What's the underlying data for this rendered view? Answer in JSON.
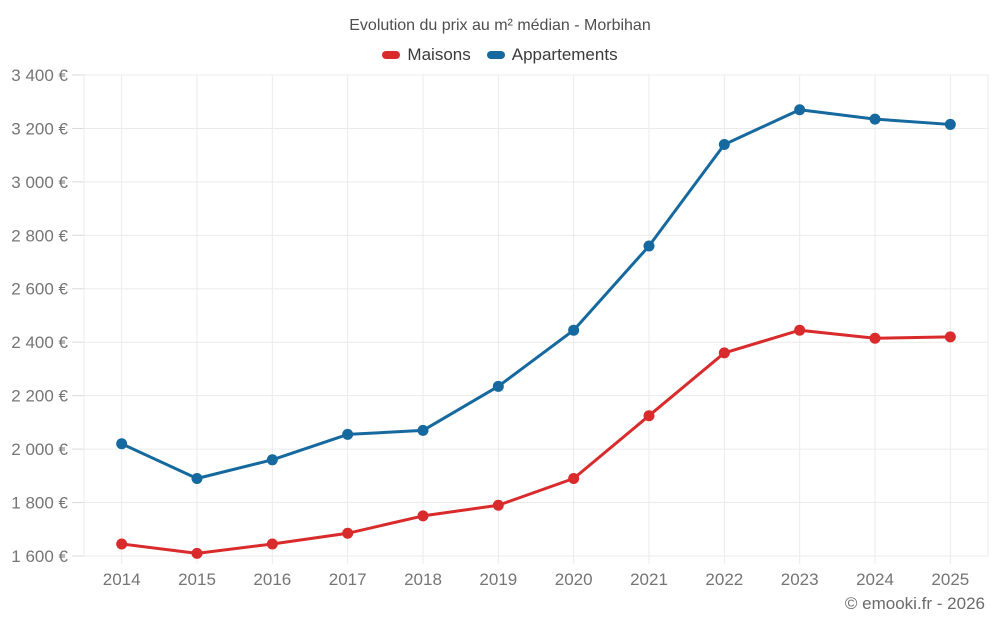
{
  "title": "Evolution du prix au m² médian - Morbihan",
  "footer": "© emooki.fr - 2026",
  "legend": {
    "items": [
      {
        "label": "Maisons",
        "color": "#d92b2b"
      },
      {
        "label": "Appartements",
        "color": "#15699e"
      }
    ]
  },
  "colors": {
    "maisons": "#d92b2b",
    "appartements": "#15699e",
    "gridline": "#ebebeb",
    "tick": "#d9d9d9",
    "axis_label": "#757575",
    "title_text": "#4e4e4e",
    "footer_text": "#6b6b6b"
  },
  "chart_data": {
    "type": "line",
    "title": "Evolution du prix au m² médian - Morbihan",
    "categories": [
      "2014",
      "2015",
      "2016",
      "2017",
      "2018",
      "2019",
      "2020",
      "2021",
      "2022",
      "2023",
      "2024",
      "2025"
    ],
    "series": [
      {
        "name": "Maisons",
        "color": "#d92b2b",
        "values": [
          1645,
          1610,
          1645,
          1685,
          1750,
          1790,
          1890,
          2125,
          2360,
          2445,
          2415,
          2420
        ]
      },
      {
        "name": "Appartements",
        "color": "#15699e",
        "values": [
          2020,
          1890,
          1960,
          2055,
          2070,
          2235,
          2445,
          2760,
          3140,
          3270,
          3235,
          3215
        ]
      }
    ],
    "xlabel": "",
    "ylabel": "",
    "ylim": [
      1600,
      3400
    ],
    "ytick_step": 200,
    "ytick_suffix": "€",
    "grid": true,
    "legend_position": "top",
    "markers": true
  }
}
